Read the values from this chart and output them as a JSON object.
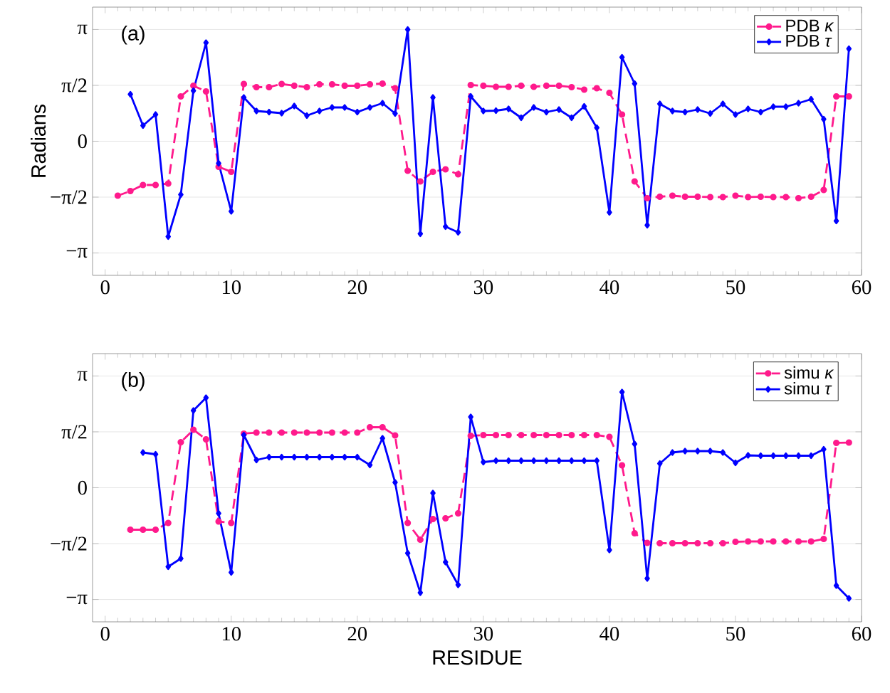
{
  "chart_data": [
    {
      "type": "line",
      "ylabel": "Radians",
      "annotations": [
        "(a)"
      ],
      "xlim": [
        -1,
        60
      ],
      "xticks": [
        0,
        10,
        20,
        30,
        40,
        50,
        60
      ],
      "ylim": [
        -3.77,
        3.77
      ],
      "yticks": [
        {
          "value": -3.1416,
          "label": "−π"
        },
        {
          "value": -1.5708,
          "label": "−π/2"
        },
        {
          "value": 0,
          "label": "0"
        },
        {
          "value": 1.5708,
          "label": "π/2"
        },
        {
          "value": 3.1416,
          "label": "π"
        }
      ],
      "grid": "y",
      "legend": "top right",
      "series": [
        {
          "name": "PDB *κ*",
          "color": "#ff1a8c",
          "marker": "circle",
          "line_style": "dashed",
          "x": [
            1,
            2,
            3,
            4,
            5,
            6,
            7,
            8,
            9,
            10,
            11,
            12,
            13,
            14,
            15,
            16,
            17,
            18,
            19,
            20,
            21,
            22,
            23,
            24,
            25,
            26,
            27,
            28,
            29,
            30,
            31,
            32,
            33,
            34,
            35,
            36,
            37,
            38,
            39,
            40,
            41,
            42,
            43,
            44,
            45,
            46,
            47,
            48,
            49,
            50,
            51,
            52,
            53,
            54,
            55,
            56,
            57,
            58,
            59
          ],
          "values": [
            -1.53,
            -1.4,
            -1.23,
            -1.23,
            -1.19,
            1.26,
            1.56,
            1.4,
            -0.72,
            -0.86,
            1.61,
            1.52,
            1.52,
            1.61,
            1.56,
            1.52,
            1.6,
            1.6,
            1.56,
            1.56,
            1.6,
            1.62,
            1.49,
            -0.83,
            -1.13,
            -0.86,
            -0.79,
            -0.93,
            1.58,
            1.56,
            1.53,
            1.53,
            1.56,
            1.53,
            1.56,
            1.56,
            1.52,
            1.45,
            1.49,
            1.36,
            0.75,
            -1.13,
            -1.6,
            -1.56,
            -1.53,
            -1.56,
            -1.56,
            -1.57,
            -1.57,
            -1.53,
            -1.57,
            -1.56,
            -1.57,
            -1.57,
            -1.6,
            -1.56,
            -1.37,
            1.26,
            1.26
          ]
        },
        {
          "name": "PDB *τ*",
          "color": "#0000ff",
          "marker": "diamond",
          "line_style": "solid",
          "x": [
            2,
            3,
            4,
            5,
            6,
            7,
            8,
            9,
            10,
            11,
            12,
            13,
            14,
            15,
            16,
            17,
            18,
            19,
            20,
            21,
            22,
            23,
            24,
            25,
            26,
            27,
            28,
            29,
            30,
            31,
            32,
            33,
            34,
            35,
            36,
            37,
            38,
            39,
            40,
            41,
            42,
            43,
            44,
            45,
            46,
            47,
            48,
            49,
            50,
            51,
            52,
            53,
            54,
            55,
            56,
            57,
            58,
            59
          ],
          "values": [
            1.32,
            0.44,
            0.75,
            -2.68,
            -1.5,
            1.42,
            2.77,
            -0.62,
            -1.97,
            1.23,
            0.85,
            0.82,
            0.79,
            0.99,
            0.72,
            0.85,
            0.95,
            0.95,
            0.82,
            0.95,
            1.07,
            0.78,
            3.14,
            -2.6,
            1.23,
            -2.4,
            -2.56,
            1.26,
            0.85,
            0.86,
            0.91,
            0.66,
            0.95,
            0.82,
            0.89,
            0.66,
            0.98,
            0.38,
            -2.0,
            2.36,
            1.62,
            -2.36,
            1.05,
            0.85,
            0.82,
            0.89,
            0.78,
            1.05,
            0.75,
            0.91,
            0.82,
            0.97,
            0.97,
            1.07,
            1.18,
            0.62,
            -2.24,
            2.6
          ]
        }
      ]
    },
    {
      "type": "line",
      "xlabel": "RESIDUE",
      "annotations": [
        "(b)"
      ],
      "xlim": [
        -1,
        60
      ],
      "xticks": [
        0,
        10,
        20,
        30,
        40,
        50,
        60
      ],
      "ylim": [
        -3.77,
        3.77
      ],
      "yticks": [
        {
          "value": -3.1416,
          "label": "−π"
        },
        {
          "value": -1.5708,
          "label": "−π/2"
        },
        {
          "value": 0,
          "label": "0"
        },
        {
          "value": 1.5708,
          "label": "π/2"
        },
        {
          "value": 3.1416,
          "label": "π"
        }
      ],
      "grid": "y",
      "legend": "top right",
      "series": [
        {
          "name": "simu *κ*",
          "color": "#ff1a8c",
          "marker": "circle",
          "line_style": "dashed",
          "x": [
            2,
            3,
            4,
            5,
            6,
            7,
            8,
            9,
            10,
            11,
            12,
            13,
            14,
            15,
            16,
            17,
            18,
            19,
            20,
            21,
            22,
            23,
            24,
            25,
            26,
            27,
            28,
            29,
            30,
            31,
            32,
            33,
            34,
            35,
            36,
            37,
            38,
            39,
            40,
            41,
            42,
            43,
            44,
            45,
            46,
            47,
            48,
            49,
            50,
            51,
            52,
            53,
            54,
            55,
            56,
            57,
            58,
            59
          ],
          "values": [
            -1.18,
            -1.18,
            -1.18,
            -0.99,
            1.28,
            1.63,
            1.36,
            -0.95,
            -0.99,
            1.52,
            1.55,
            1.55,
            1.55,
            1.55,
            1.55,
            1.55,
            1.55,
            1.55,
            1.55,
            1.7,
            1.7,
            1.47,
            -0.99,
            -1.46,
            -0.88,
            -0.86,
            -0.72,
            1.46,
            1.48,
            1.48,
            1.48,
            1.48,
            1.48,
            1.48,
            1.48,
            1.48,
            1.48,
            1.48,
            1.43,
            0.63,
            -1.28,
            -1.55,
            -1.56,
            -1.56,
            -1.56,
            -1.56,
            -1.56,
            -1.56,
            -1.52,
            -1.51,
            -1.51,
            -1.51,
            -1.51,
            -1.51,
            -1.51,
            -1.44,
            1.26,
            1.27
          ]
        },
        {
          "name": "simu *τ*",
          "color": "#0000ff",
          "marker": "diamond",
          "line_style": "solid",
          "x": [
            3,
            4,
            5,
            6,
            7,
            8,
            9,
            10,
            11,
            12,
            13,
            14,
            15,
            16,
            17,
            18,
            19,
            20,
            21,
            22,
            23,
            24,
            25,
            26,
            27,
            28,
            29,
            30,
            31,
            32,
            33,
            34,
            35,
            36,
            37,
            38,
            39,
            40,
            41,
            42,
            43,
            44,
            45,
            46,
            47,
            48,
            49,
            50,
            51,
            52,
            53,
            54,
            55,
            56,
            57,
            58,
            59
          ],
          "values": [
            0.99,
            0.94,
            -2.22,
            -1.99,
            2.17,
            2.53,
            -0.72,
            -2.38,
            1.48,
            0.78,
            0.86,
            0.86,
            0.86,
            0.86,
            0.86,
            0.86,
            0.86,
            0.86,
            0.64,
            1.39,
            0.15,
            -1.84,
            -2.95,
            -0.15,
            -2.09,
            -2.73,
            1.99,
            0.72,
            0.76,
            0.76,
            0.76,
            0.76,
            0.76,
            0.76,
            0.76,
            0.76,
            0.76,
            -1.75,
            2.69,
            1.23,
            -2.55,
            0.68,
            0.99,
            1.03,
            1.03,
            1.03,
            0.99,
            0.7,
            0.91,
            0.9,
            0.9,
            0.9,
            0.9,
            0.9,
            1.08,
            -2.75,
            -3.11
          ]
        }
      ]
    }
  ]
}
